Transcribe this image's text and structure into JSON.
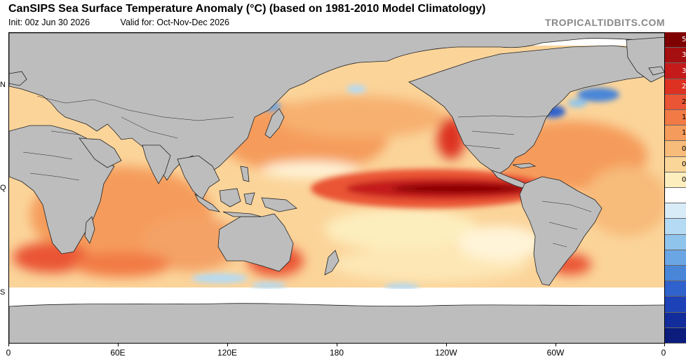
{
  "header": {
    "title": "CanSIPS Sea Surface Temperature Anomaly (°C) (based on 1981-2010 Model Climatology)",
    "init": "Init: 00z Jun 30 2026",
    "valid": "Valid for: Oct-Nov-Dec 2026",
    "credit": "TROPICALTIDBITS.COM"
  },
  "map": {
    "longitude_labels": [
      "0",
      "60E",
      "120E",
      "180",
      "120W",
      "60W",
      "0"
    ],
    "latitude_labels": [
      "N",
      "Q",
      "S"
    ],
    "colors": {
      "land": "#bdbdbd",
      "land_border": "#222222",
      "ocean_neutral": "#ffffff"
    }
  },
  "colorbar": {
    "labels": [
      "5",
      "3",
      "3",
      "2",
      "2",
      "1",
      "1",
      "0",
      "0",
      "0",
      "",
      "",
      "",
      "",
      "",
      "",
      "",
      "",
      "",
      ""
    ],
    "colors": [
      "#7f0000",
      "#a50f0f",
      "#c41a1a",
      "#dd3222",
      "#ea5535",
      "#f27a45",
      "#f59c5c",
      "#f7bb7a",
      "#fbd699",
      "#fdeebe",
      "#ffffff",
      "#d8ecf8",
      "#b5daf3",
      "#8fc4ec",
      "#6aa6e3",
      "#4a86d8",
      "#2f62cc",
      "#1d42b8",
      "#122c9c",
      "#0b1c7d"
    ]
  }
}
